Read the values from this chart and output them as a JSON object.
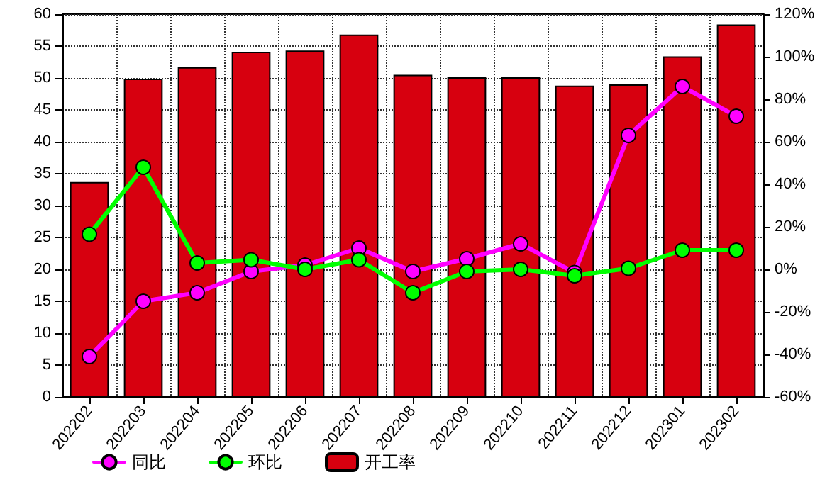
{
  "chart_data": {
    "type": "bar",
    "categories": [
      "202202",
      "202203",
      "202204",
      "202205",
      "202206",
      "202207",
      "202208",
      "202209",
      "202210",
      "202211",
      "202212",
      "202301",
      "202302"
    ],
    "series": [
      {
        "name": "同比",
        "type": "line",
        "axis": "y2",
        "color": "#ff00ff",
        "values": [
          -41,
          -15,
          -11,
          -1,
          2,
          10,
          -1,
          5,
          12,
          -1.5,
          63,
          86,
          72
        ]
      },
      {
        "name": "环比",
        "type": "line",
        "axis": "y2",
        "color": "#00ff00",
        "values": [
          16.5,
          48,
          3,
          4.5,
          0,
          4.5,
          -11,
          -1,
          0,
          -3,
          0.5,
          9,
          9
        ]
      },
      {
        "name": "开工率",
        "color": "#d7000f",
        "values": [
          33.7,
          49.9,
          51.7,
          54.1,
          54.3,
          56.8,
          50.5,
          50.1,
          50.1,
          48.8,
          49,
          53.4,
          58.4
        ]
      }
    ],
    "ylim": [
      0,
      60
    ],
    "yticks": [
      0,
      5,
      10,
      15,
      20,
      25,
      30,
      35,
      40,
      45,
      50,
      55,
      60
    ],
    "y2lim": [
      -60,
      120
    ],
    "y2ticks": [
      {
        "value": -60,
        "label": "-60%"
      },
      {
        "value": -40,
        "label": "-40%"
      },
      {
        "value": -20,
        "label": "-20%"
      },
      {
        "value": 0,
        "label": "0%"
      },
      {
        "value": 20,
        "label": "20%"
      },
      {
        "value": 40,
        "label": "40%"
      },
      {
        "value": 60,
        "label": "60%"
      },
      {
        "value": 80,
        "label": "80%"
      },
      {
        "value": 100,
        "label": "100%"
      },
      {
        "value": 120,
        "label": "120%"
      }
    ],
    "grid": true,
    "legend": "bottom left",
    "marker": "circle",
    "line_style": "solid"
  }
}
